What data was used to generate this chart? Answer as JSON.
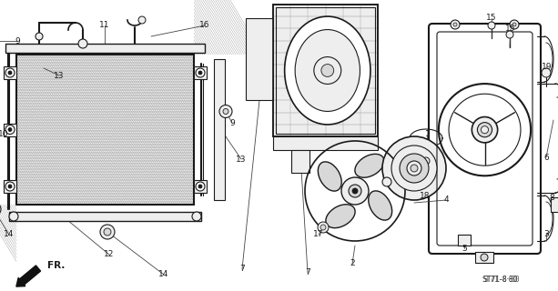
{
  "bg_color": "#ffffff",
  "line_color": "#1a1a1a",
  "gray_fill": "#d8d8d8",
  "light_fill": "#eeeeee",
  "watermark": "ST71-8·80",
  "figsize": [
    6.13,
    3.2
  ],
  "dpi": 100
}
